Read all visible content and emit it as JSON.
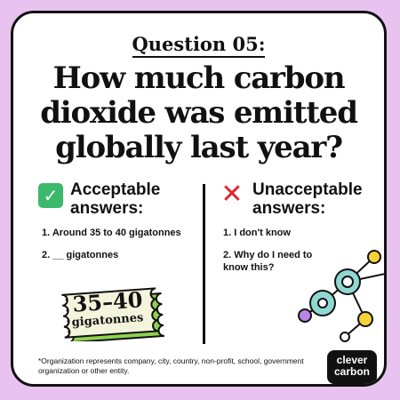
{
  "question": {
    "label": "Question 05:",
    "title": "How much carbon dioxide was emitted globally last year?"
  },
  "acceptable": {
    "icon": "check-icon",
    "heading": "Acceptable answers:",
    "items": [
      "1.  Around 35 to 40 gigatonnes",
      "2.  __ gigatonnes"
    ]
  },
  "unacceptable": {
    "icon": "x-icon",
    "heading": "Unacceptable answers:",
    "items": [
      "1.  I don't know",
      "2.  Why do I need to know this?"
    ]
  },
  "ticket": {
    "value": "35–40",
    "unit": "gigatonnes"
  },
  "footnote": "*Organization represents company, city, country, non-profit, school, government organization or other entity.",
  "logo": {
    "line1": "clever",
    "line2": "carbon"
  },
  "colors": {
    "background": "#e9c3f0",
    "accept_green": "#3cb96b",
    "reject_red": "#e0262c",
    "ticket_fill": "#f4f4dc",
    "ticket_accent": "#8fd14f",
    "molecule_teal": "#8fd8d2",
    "molecule_yellow": "#f6d23a",
    "molecule_purple": "#b984e6"
  }
}
